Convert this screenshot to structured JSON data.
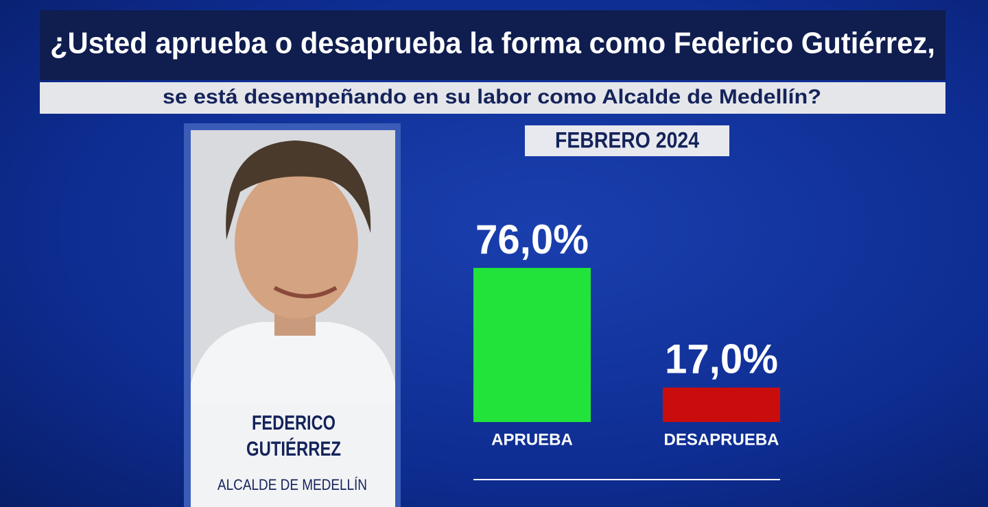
{
  "chart_data": {
    "type": "bar",
    "title": "¿Usted aprueba o desaprueba la forma como Federico Gutiérrez,",
    "subtitle": "se está desempeñando en su labor como Alcalde de Medellín?",
    "period": "FEBRERO 2024",
    "categories": [
      "APRUEBA",
      "DESAPRUEBA"
    ],
    "values": [
      76,
      17
    ],
    "value_labels": [
      "76,0%",
      "17,0%"
    ],
    "colors": [
      "#22e33a",
      "#c90d0d"
    ]
  },
  "profile": {
    "name_lines": [
      "FEDERICO",
      "GUTIÉRREZ"
    ],
    "role": "ALCALDE DE MEDELLÍN"
  }
}
